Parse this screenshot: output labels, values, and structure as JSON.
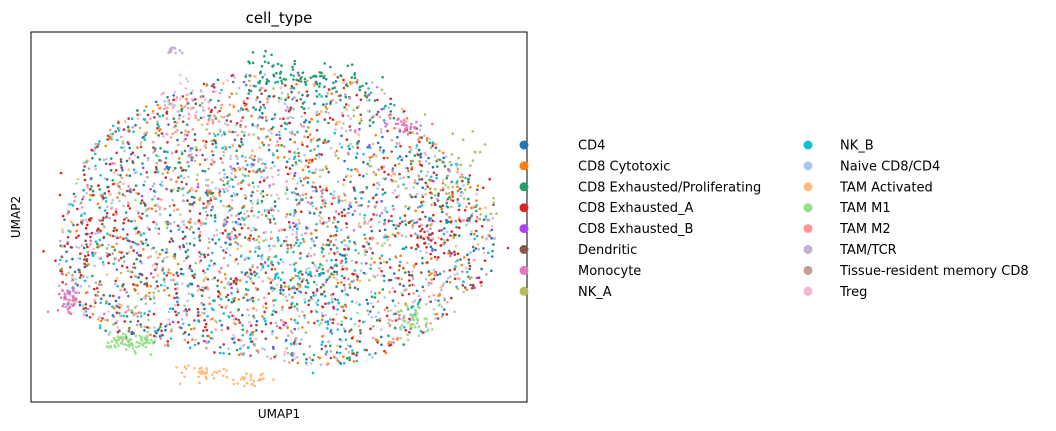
{
  "chart_data": {
    "type": "scatter",
    "title": "cell_type",
    "xlabel": "UMAP1",
    "ylabel": "UMAP2",
    "xticks": false,
    "yticks": false,
    "grid": false,
    "legend_placement": "right-outside",
    "legend_columns": 2,
    "series": [
      {
        "name": "CD4",
        "color": "#1f77b4"
      },
      {
        "name": "CD8 Cytotoxic",
        "color": "#ff7f0e"
      },
      {
        "name": "CD8 Exhausted/Proliferating",
        "color": "#279e68"
      },
      {
        "name": "CD8 Exhausted_A",
        "color": "#d62728"
      },
      {
        "name": "CD8 Exhausted_B",
        "color": "#aa40fc"
      },
      {
        "name": "Dendritic",
        "color": "#8c564b"
      },
      {
        "name": "Monocyte",
        "color": "#e377c2"
      },
      {
        "name": "NK_A",
        "color": "#b5bd61"
      },
      {
        "name": "NK_B",
        "color": "#17becf"
      },
      {
        "name": "Naive CD8/CD4",
        "color": "#aec7e8"
      },
      {
        "name": "TAM Activated",
        "color": "#ffbb78"
      },
      {
        "name": "TAM M1",
        "color": "#98df8a"
      },
      {
        "name": "TAM M2",
        "color": "#ff9896"
      },
      {
        "name": "TAM/TCR",
        "color": "#c5b0d5"
      },
      {
        "name": "Tissue-resident memory CD8",
        "color": "#c49c94"
      },
      {
        "name": "Treg",
        "color": "#f7b6d2"
      }
    ]
  }
}
